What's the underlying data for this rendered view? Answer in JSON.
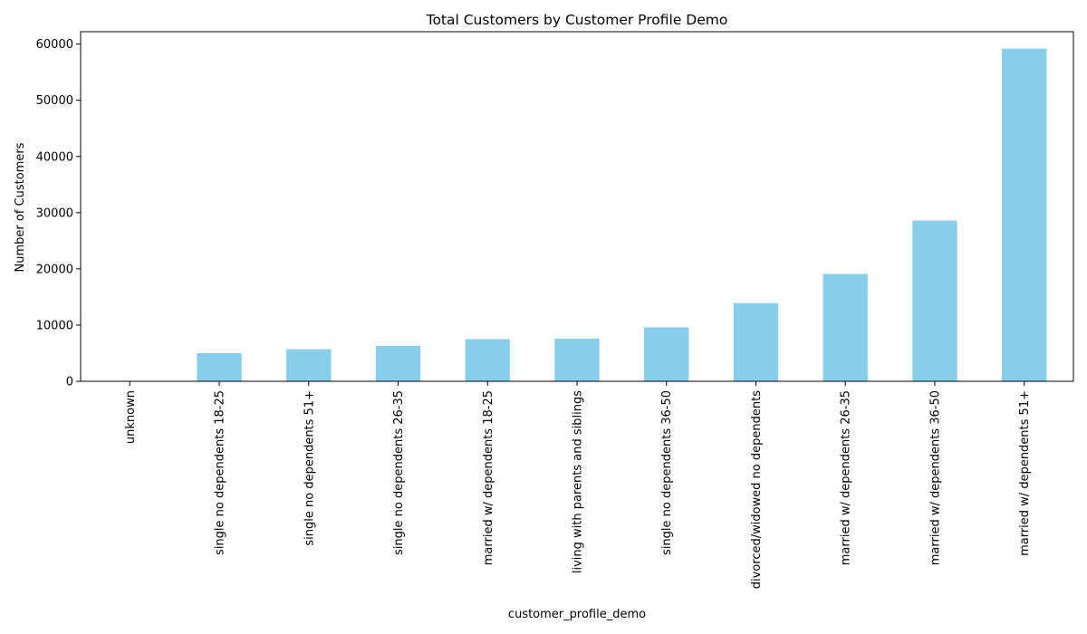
{
  "chart_data": {
    "type": "bar",
    "title": "Total Customers by Customer Profile Demo",
    "xlabel": "customer_profile_demo",
    "ylabel": "Number of Customers",
    "categories": [
      "unknown",
      "single no dependents 18-25",
      "single no dependents 51+",
      "single no dependents 26-35",
      "married w/ dependents 18-25",
      "living with parents and siblings",
      "single no dependents 36-50",
      "divorced/widowed no dependents",
      "married w/ dependents 26-35",
      "married w/ dependents 36-50",
      "married w/ dependents 51+"
    ],
    "values": [
      0,
      5000,
      5700,
      6300,
      7500,
      7600,
      9600,
      13900,
      19100,
      28600,
      59200
    ],
    "ylim": [
      0,
      62200
    ],
    "yticks": [
      0,
      10000,
      20000,
      30000,
      40000,
      50000,
      60000
    ],
    "bar_color": "#87ceeb",
    "grid": false,
    "legend": "none"
  }
}
